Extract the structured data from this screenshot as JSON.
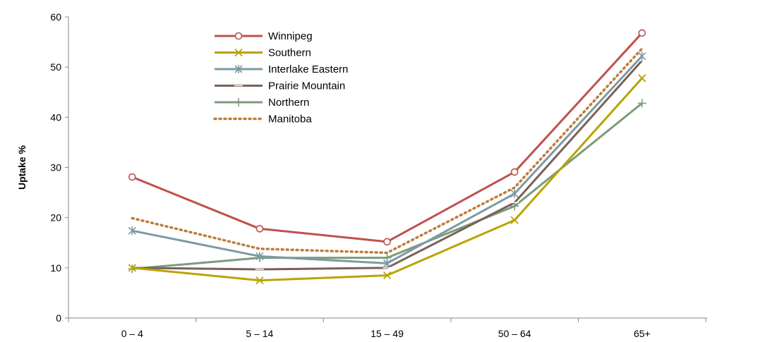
{
  "chart_data": {
    "type": "line",
    "title": "",
    "xlabel": "",
    "ylabel": "Uptake %",
    "ylim": [
      0,
      60
    ],
    "yticks": [
      0,
      10,
      20,
      30,
      40,
      50,
      60
    ],
    "grid": false,
    "legend_position": "top-center",
    "categories": [
      "0 – 4",
      "5 – 14",
      "15 – 49",
      "50 – 64",
      "65+"
    ],
    "series": [
      {
        "name": "Winnipeg",
        "values": [
          28.1,
          17.8,
          15.2,
          29.1,
          56.8
        ],
        "color": "#c0504d",
        "marker": "circle",
        "dash": "solid"
      },
      {
        "name": "Southern",
        "values": [
          10.0,
          7.5,
          8.5,
          19.5,
          47.8
        ],
        "color": "#b8a400",
        "marker": "x",
        "dash": "solid"
      },
      {
        "name": "Interlake Eastern",
        "values": [
          17.4,
          12.3,
          10.9,
          24.8,
          52.2
        ],
        "color": "#7d9aa4",
        "marker": "star",
        "dash": "solid"
      },
      {
        "name": "Prairie Mountain",
        "values": [
          10.0,
          9.7,
          10.0,
          23.0,
          51.3
        ],
        "color": "#7b6058",
        "marker": "dash",
        "dash": "solid"
      },
      {
        "name": "Northern",
        "values": [
          9.8,
          12.0,
          12.0,
          22.3,
          42.8
        ],
        "color": "#7b9c7b",
        "marker": "plus",
        "dash": "solid"
      },
      {
        "name": "Manitoba",
        "values": [
          19.9,
          13.8,
          13.0,
          26.0,
          53.7
        ],
        "color": "#c07b38",
        "marker": "none",
        "dash": "dotted"
      }
    ]
  }
}
